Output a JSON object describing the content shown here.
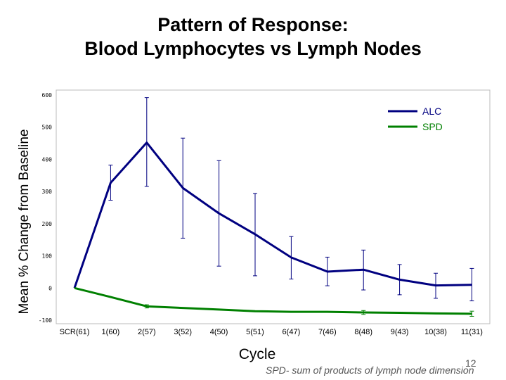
{
  "header": {
    "title_line1": "Pattern of Response:",
    "title_line2": "Blood Lymphocytes vs Lymph Nodes"
  },
  "footer": {
    "page_number": "12",
    "note": "SPD- sum of products of lymph node dimension"
  },
  "chart_data": {
    "type": "line",
    "title": "",
    "xlabel": "Cycle",
    "ylabel": "Mean % Change from Baseline",
    "categories": [
      "SCR(61)",
      "1(60)",
      "2(57)",
      "3(52)",
      "4(50)",
      "5(51)",
      "6(47)",
      "7(46)",
      "8(48)",
      "9(43)",
      "10(38)",
      "11(31)"
    ],
    "ylim": [
      -100,
      600
    ],
    "yticks": [
      "600",
      "500",
      "400",
      "300",
      "200",
      "100",
      "0",
      "-100"
    ],
    "grid": false,
    "legend_position": "top-right",
    "series": [
      {
        "name": "ALC",
        "color": "#000080",
        "values": [
          0,
          327,
          452,
          311,
          232,
          167,
          95,
          51,
          57,
          26,
          8,
          10
        ],
        "errors": [
          null,
          [
            273,
            382
          ],
          [
            316,
            592
          ],
          [
            155,
            466
          ],
          [
            68,
            396
          ],
          [
            38,
            294
          ],
          [
            28,
            160
          ],
          [
            7,
            96
          ],
          [
            -6,
            118
          ],
          [
            -21,
            73
          ],
          [
            -32,
            46
          ],
          [
            -40,
            61
          ]
        ]
      },
      {
        "name": "SPD",
        "color": "#008000",
        "values": [
          0,
          -28,
          -57,
          -62,
          -67,
          -72,
          -74,
          -74,
          -76,
          -77,
          -79,
          -80
        ],
        "errors": [
          null,
          null,
          [
            -62,
            -52
          ],
          null,
          null,
          null,
          null,
          null,
          [
            -82,
            -70
          ],
          null,
          null,
          [
            -88,
            -72
          ]
        ]
      }
    ]
  }
}
